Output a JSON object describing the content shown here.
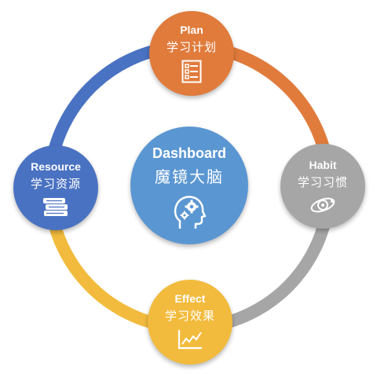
{
  "colors": {
    "plan": "#E07B3C",
    "habit": "#A6A6A6",
    "effect": "#F2BB3D",
    "resource": "#4A72C2",
    "center": "#5A96D2"
  },
  "center": {
    "title": "Dashboard",
    "subtitle": "魔镜大脑",
    "icon": "head-gears-icon"
  },
  "nodes": {
    "plan": {
      "title": "Plan",
      "subtitle": "学习计划",
      "icon": "checklist-icon"
    },
    "habit": {
      "title": "Habit",
      "subtitle": "学习习惯",
      "icon": "orbit-icon"
    },
    "effect": {
      "title": "Effect",
      "subtitle": "学习效果",
      "icon": "line-chart-icon"
    },
    "resource": {
      "title": "Resource",
      "subtitle": "学习资源",
      "icon": "books-icon"
    }
  }
}
